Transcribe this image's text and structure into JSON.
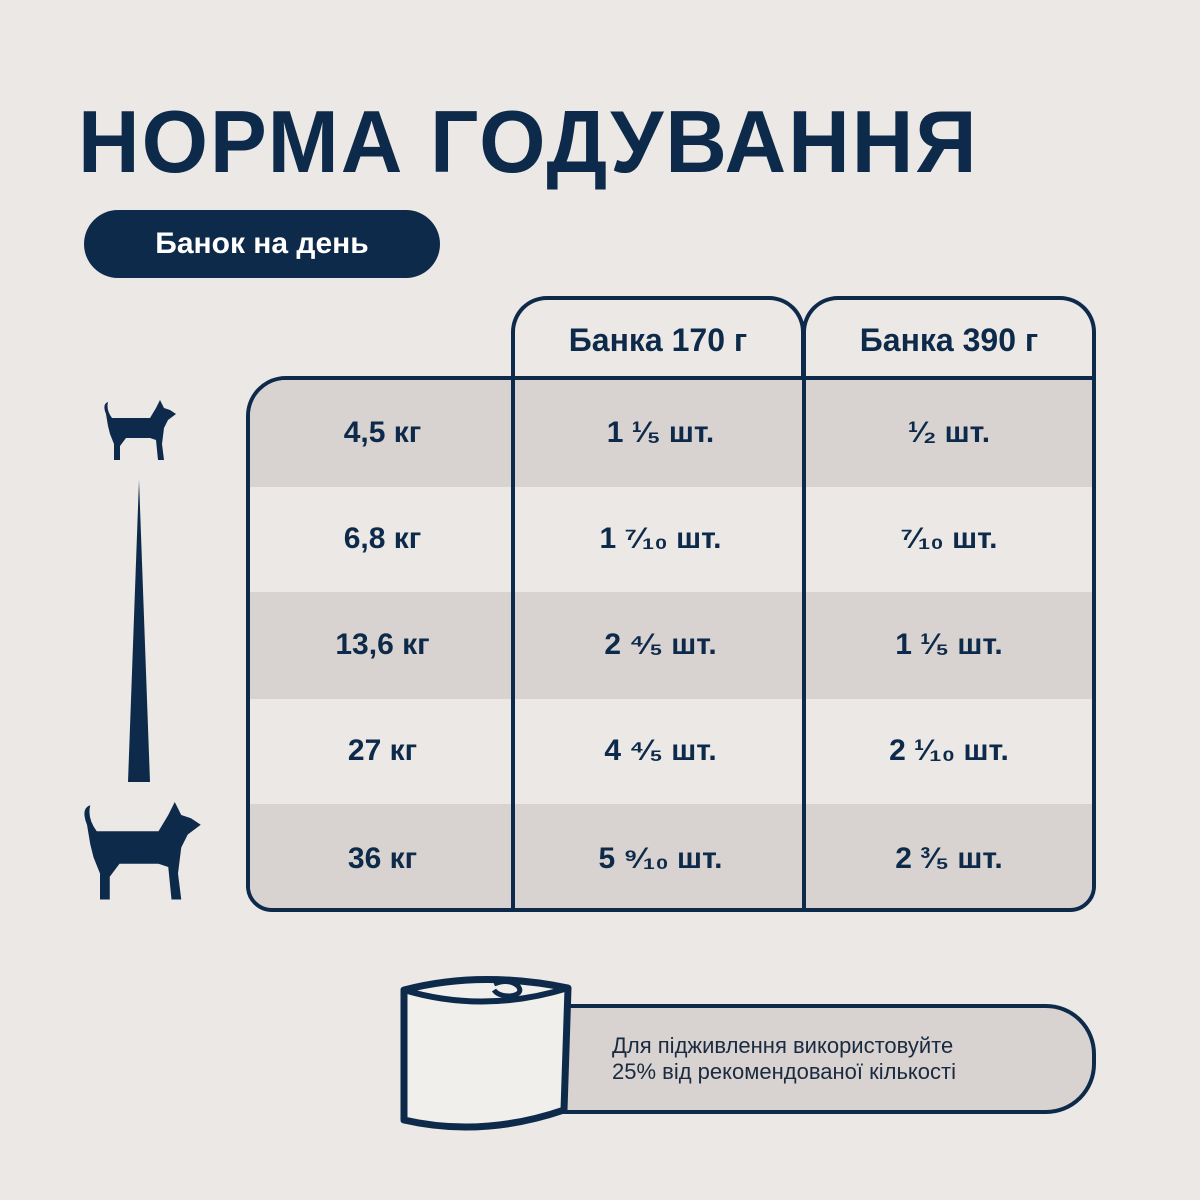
{
  "title": "НОРМА ГОДУВАННЯ",
  "subtitle_pill": "Банок на день",
  "table": {
    "headers": [
      "Банка 170 г",
      "Банка 390 г"
    ],
    "rows": [
      {
        "weight": "4,5 кг",
        "can170": "1 ¹⁄₅ шт.",
        "can390": "¹⁄₂ шт."
      },
      {
        "weight": "6,8 кг",
        "can170": "1 ⁷⁄₁₀ шт.",
        "can390": "⁷⁄₁₀ шт."
      },
      {
        "weight": "13,6 кг",
        "can170": "2 ⁴⁄₅ шт.",
        "can390": "1 ¹⁄₅ шт."
      },
      {
        "weight": "27 кг",
        "can170": "4 ⁴⁄₅ шт.",
        "can390": "2 ¹⁄₁₀ шт."
      },
      {
        "weight": "36 кг",
        "can170": "5 ⁹⁄₁₀ шт.",
        "can390": "2 ³⁄₅ шт."
      }
    ]
  },
  "note": {
    "line1": "Для підживлення використовуйте",
    "line2": "25% від рекомендованої кількості"
  },
  "icons": [
    "small-dog-icon",
    "large-dog-icon",
    "size-scale-wedge-icon",
    "can-icon"
  ],
  "colors": {
    "navy": "#0e2a4a",
    "background": "#ebe8e5",
    "row_grey": "#d8d3d0"
  }
}
